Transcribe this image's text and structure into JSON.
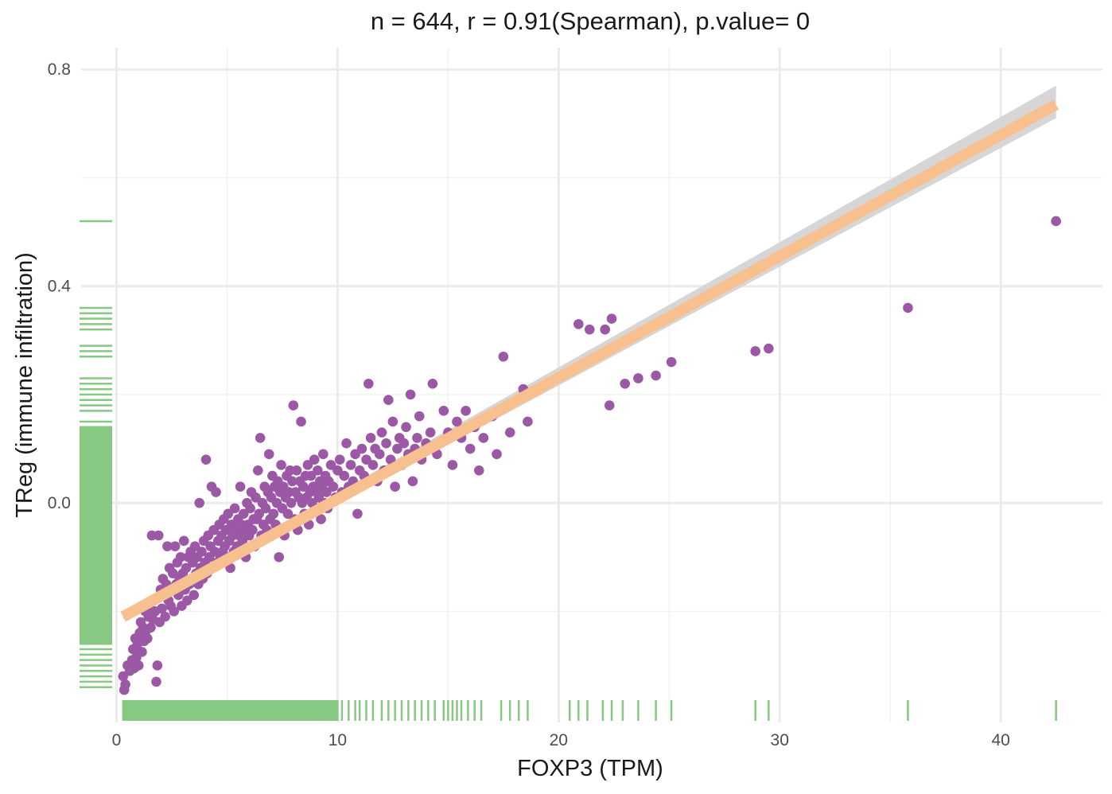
{
  "chart_data": {
    "type": "scatter",
    "title": "n = 644, r = 0.91(Spearman), p.value= 0",
    "xlabel": "FOXP3 (TPM)",
    "ylabel": "TReg (immune infiltration)",
    "xlim": [
      -1.6,
      44.6
    ],
    "ylim": [
      -0.405,
      0.84
    ],
    "x_ticks": [
      0,
      10,
      20,
      30,
      40
    ],
    "x_tick_labels": [
      "0",
      "10",
      "20",
      "30",
      "40"
    ],
    "y_ticks": [
      0.0,
      0.4,
      0.8
    ],
    "y_tick_labels": [
      "0.0",
      "0.4",
      "0.8"
    ],
    "grid": true,
    "colors": {
      "points": "#9b59a5",
      "fit_line": "#f9c08f",
      "confidence_band": "#d4d4d4",
      "rug": "#87c882"
    },
    "fit_line": {
      "x": [
        0.3,
        42.5
      ],
      "y": [
        -0.21,
        0.735
      ]
    },
    "confidence_band": {
      "x": [
        0.3,
        42.5
      ],
      "y_low": [
        -0.215,
        0.71
      ],
      "y_high": [
        -0.205,
        0.77
      ]
    },
    "points": [
      [
        0.3,
        -0.32
      ],
      [
        0.35,
        -0.345
      ],
      [
        0.4,
        -0.335
      ],
      [
        0.5,
        -0.3
      ],
      [
        0.6,
        -0.31
      ],
      [
        0.7,
        -0.29
      ],
      [
        0.75,
        -0.27
      ],
      [
        0.8,
        -0.305
      ],
      [
        0.85,
        -0.25
      ],
      [
        0.9,
        -0.285
      ],
      [
        0.95,
        -0.26
      ],
      [
        1.0,
        -0.3
      ],
      [
        1.05,
        -0.24
      ],
      [
        1.1,
        -0.22
      ],
      [
        1.15,
        -0.275
      ],
      [
        1.2,
        -0.23
      ],
      [
        1.25,
        -0.255
      ],
      [
        1.3,
        -0.2
      ],
      [
        1.35,
        -0.235
      ],
      [
        1.4,
        -0.25
      ],
      [
        1.45,
        -0.21
      ],
      [
        1.5,
        -0.19
      ],
      [
        1.55,
        -0.23
      ],
      [
        1.6,
        -0.06
      ],
      [
        1.65,
        -0.215
      ],
      [
        1.7,
        -0.18
      ],
      [
        1.75,
        -0.2
      ],
      [
        1.8,
        -0.33
      ],
      [
        1.85,
        -0.3
      ],
      [
        1.9,
        -0.06
      ],
      [
        1.95,
        -0.22
      ],
      [
        2.0,
        -0.16
      ],
      [
        2.05,
        -0.195
      ],
      [
        2.1,
        -0.14
      ],
      [
        2.15,
        -0.17
      ],
      [
        2.2,
        -0.21
      ],
      [
        2.25,
        -0.15
      ],
      [
        2.3,
        -0.08
      ],
      [
        2.35,
        -0.18
      ],
      [
        2.4,
        -0.12
      ],
      [
        2.45,
        -0.19
      ],
      [
        2.5,
        -0.16
      ],
      [
        2.55,
        -0.13
      ],
      [
        2.6,
        -0.2
      ],
      [
        2.65,
        -0.08
      ],
      [
        2.7,
        -0.15
      ],
      [
        2.75,
        -0.11
      ],
      [
        2.8,
        -0.17
      ],
      [
        2.85,
        -0.14
      ],
      [
        2.9,
        -0.1
      ],
      [
        2.95,
        -0.19
      ],
      [
        3.0,
        -0.13
      ],
      [
        3.05,
        -0.07
      ],
      [
        3.1,
        -0.16
      ],
      [
        3.15,
        -0.12
      ],
      [
        3.2,
        -0.18
      ],
      [
        3.25,
        -0.1
      ],
      [
        3.3,
        -0.15
      ],
      [
        3.35,
        -0.09
      ],
      [
        3.4,
        -0.14
      ],
      [
        3.45,
        -0.11
      ],
      [
        3.5,
        -0.17
      ],
      [
        3.55,
        -0.08
      ],
      [
        3.6,
        -0.13
      ],
      [
        3.65,
        -0.1
      ],
      [
        3.7,
        -0.15
      ],
      [
        3.75,
        0.0
      ],
      [
        3.8,
        -0.12
      ],
      [
        3.85,
        -0.09
      ],
      [
        3.9,
        -0.14
      ],
      [
        3.95,
        -0.07
      ],
      [
        4.0,
        -0.11
      ],
      [
        4.05,
        0.08
      ],
      [
        4.1,
        -0.13
      ],
      [
        4.15,
        -0.06
      ],
      [
        4.2,
        -0.1
      ],
      [
        4.25,
        -0.08
      ],
      [
        4.3,
        0.03
      ],
      [
        4.35,
        -0.12
      ],
      [
        4.4,
        -0.05
      ],
      [
        4.45,
        -0.09
      ],
      [
        4.5,
        0.02
      ],
      [
        4.55,
        -0.11
      ],
      [
        4.6,
        -0.07
      ],
      [
        4.65,
        -0.04
      ],
      [
        4.7,
        -0.1
      ],
      [
        4.75,
        -0.06
      ],
      [
        4.8,
        -0.09
      ],
      [
        4.85,
        -0.03
      ],
      [
        4.9,
        -0.08
      ],
      [
        4.95,
        -0.05
      ],
      [
        5.0,
        -0.1
      ],
      [
        5.05,
        -0.02
      ],
      [
        5.1,
        -0.07
      ],
      [
        5.15,
        -0.12
      ],
      [
        5.2,
        -0.04
      ],
      [
        5.25,
        -0.06
      ],
      [
        5.3,
        -0.09
      ],
      [
        5.35,
        -0.01
      ],
      [
        5.4,
        -0.05
      ],
      [
        5.45,
        -0.08
      ],
      [
        5.5,
        -0.03
      ],
      [
        5.55,
        -0.06
      ],
      [
        5.6,
        0.03
      ],
      [
        5.65,
        -0.04
      ],
      [
        5.7,
        -0.07
      ],
      [
        5.75,
        -0.02
      ],
      [
        5.8,
        -0.05
      ],
      [
        5.85,
        -0.1
      ],
      [
        5.9,
        0.0
      ],
      [
        5.95,
        -0.04
      ],
      [
        6.0,
        -0.06
      ],
      [
        6.05,
        -0.01
      ],
      [
        6.1,
        0.02
      ],
      [
        6.15,
        -0.05
      ],
      [
        6.2,
        -0.03
      ],
      [
        6.25,
        -0.08
      ],
      [
        6.3,
        0.01
      ],
      [
        6.35,
        -0.03
      ],
      [
        6.4,
        0.06
      ],
      [
        6.45,
        -0.02
      ],
      [
        6.5,
        0.12
      ],
      [
        6.55,
        -0.06
      ],
      [
        6.6,
        0.0
      ],
      [
        6.65,
        -0.04
      ],
      [
        6.7,
        0.03
      ],
      [
        6.75,
        -0.01
      ],
      [
        6.8,
        -0.05
      ],
      [
        6.85,
        0.02
      ],
      [
        6.9,
        0.09
      ],
      [
        6.95,
        -0.03
      ],
      [
        7.0,
        0.01
      ],
      [
        7.05,
        0.05
      ],
      [
        7.1,
        -0.02
      ],
      [
        7.15,
        0.03
      ],
      [
        7.2,
        -0.04
      ],
      [
        7.25,
        0.0
      ],
      [
        7.3,
        0.04
      ],
      [
        7.35,
        -0.1
      ],
      [
        7.4,
        0.02
      ],
      [
        7.45,
        0.07
      ],
      [
        7.5,
        -0.01
      ],
      [
        7.55,
        0.03
      ],
      [
        7.6,
        -0.06
      ],
      [
        7.65,
        0.01
      ],
      [
        7.7,
        0.05
      ],
      [
        7.75,
        -0.02
      ],
      [
        7.8,
        0.02
      ],
      [
        7.85,
        0.06
      ],
      [
        7.9,
        0.0
      ],
      [
        7.95,
        0.04
      ],
      [
        8.0,
        0.18
      ],
      [
        8.05,
        -0.03
      ],
      [
        8.1,
        0.02
      ],
      [
        8.15,
        0.06
      ],
      [
        8.2,
        -0.05
      ],
      [
        8.25,
        0.01
      ],
      [
        8.3,
        0.04
      ],
      [
        8.35,
        0.15
      ],
      [
        8.4,
        0.0
      ],
      [
        8.45,
        0.03
      ],
      [
        8.5,
        -0.02
      ],
      [
        8.55,
        0.05
      ],
      [
        8.6,
        0.01
      ],
      [
        8.65,
        0.07
      ],
      [
        8.7,
        -0.04
      ],
      [
        8.75,
        0.02
      ],
      [
        8.8,
        0.05
      ],
      [
        8.85,
        0.0
      ],
      [
        8.9,
        0.03
      ],
      [
        8.95,
        0.08
      ],
      [
        9.0,
        -0.01
      ],
      [
        9.05,
        0.02
      ],
      [
        9.1,
        0.06
      ],
      [
        9.15,
        0.01
      ],
      [
        9.2,
        0.04
      ],
      [
        9.25,
        -0.03
      ],
      [
        9.3,
        0.03
      ],
      [
        9.35,
        0.09
      ],
      [
        9.4,
        0.0
      ],
      [
        9.45,
        0.05
      ],
      [
        9.5,
        0.02
      ],
      [
        9.55,
        -0.01
      ],
      [
        9.6,
        0.04
      ],
      [
        9.7,
        0.07
      ],
      [
        9.8,
        0.03
      ],
      [
        9.9,
        0.01
      ],
      [
        10.0,
        0.06
      ],
      [
        10.1,
        0.08
      ],
      [
        10.2,
        0.02
      ],
      [
        10.3,
        0.05
      ],
      [
        10.4,
        0.11
      ],
      [
        10.5,
        0.03
      ],
      [
        10.6,
        0.07
      ],
      [
        10.7,
        0.04
      ],
      [
        10.8,
        0.09
      ],
      [
        10.9,
        -0.02
      ],
      [
        11.0,
        0.06
      ],
      [
        11.1,
        0.1
      ],
      [
        11.2,
        0.05
      ],
      [
        11.3,
        0.08
      ],
      [
        11.4,
        0.22
      ],
      [
        11.5,
        0.12
      ],
      [
        11.6,
        0.07
      ],
      [
        11.7,
        0.1
      ],
      [
        11.8,
        0.04
      ],
      [
        11.9,
        0.09
      ],
      [
        12.0,
        0.13
      ],
      [
        12.1,
        0.06
      ],
      [
        12.2,
        0.11
      ],
      [
        12.3,
        0.19
      ],
      [
        12.4,
        0.08
      ],
      [
        12.5,
        0.15
      ],
      [
        12.6,
        0.03
      ],
      [
        12.7,
        0.1
      ],
      [
        12.8,
        0.12
      ],
      [
        12.9,
        0.07
      ],
      [
        13.0,
        0.11
      ],
      [
        13.1,
        0.14
      ],
      [
        13.2,
        0.09
      ],
      [
        13.3,
        0.2
      ],
      [
        13.4,
        0.04
      ],
      [
        13.5,
        0.1
      ],
      [
        13.6,
        0.12
      ],
      [
        13.7,
        0.16
      ],
      [
        13.8,
        0.08
      ],
      [
        14.0,
        0.11
      ],
      [
        14.2,
        0.13
      ],
      [
        14.3,
        0.22
      ],
      [
        14.5,
        0.09
      ],
      [
        14.8,
        0.17
      ],
      [
        15.0,
        0.13
      ],
      [
        15.2,
        0.07
      ],
      [
        15.4,
        0.15
      ],
      [
        15.6,
        0.12
      ],
      [
        15.8,
        0.17
      ],
      [
        16.0,
        0.1
      ],
      [
        16.2,
        0.14
      ],
      [
        16.4,
        0.06
      ],
      [
        16.6,
        0.12
      ],
      [
        17.0,
        0.16
      ],
      [
        17.2,
        0.09
      ],
      [
        17.5,
        0.27
      ],
      [
        17.8,
        0.13
      ],
      [
        18.2,
        0.19
      ],
      [
        18.6,
        0.15
      ],
      [
        18.4,
        0.21
      ],
      [
        20.4,
        0.24
      ],
      [
        20.9,
        0.33
      ],
      [
        21.4,
        0.32
      ],
      [
        22.1,
        0.32
      ],
      [
        22.4,
        0.34
      ],
      [
        22.3,
        0.18
      ],
      [
        23.0,
        0.22
      ],
      [
        23.6,
        0.23
      ],
      [
        24.4,
        0.235
      ],
      [
        25.1,
        0.26
      ],
      [
        28.9,
        0.28
      ],
      [
        29.5,
        0.285
      ],
      [
        35.8,
        0.36
      ],
      [
        42.5,
        0.52
      ]
    ],
    "rug_x": [
      0.3,
      0.5,
      0.8,
      1.0,
      1.2,
      1.5,
      1.8,
      2.0,
      2.3,
      2.6,
      3.0,
      3.3,
      3.6,
      4.0,
      4.3,
      4.6,
      5.0,
      5.3,
      5.6,
      6.0,
      6.3,
      6.6,
      7.0,
      7.3,
      7.6,
      8.0,
      8.3,
      8.6,
      9.0,
      9.3,
      9.6,
      10.0,
      10.2,
      10.5,
      10.8,
      11.0,
      11.3,
      11.6,
      12.0,
      12.3,
      12.6,
      12.9,
      13.2,
      13.5,
      13.8,
      14.1,
      14.4,
      14.8,
      15.0,
      15.2,
      15.4,
      15.6,
      15.9,
      16.2,
      16.5,
      17.4,
      17.8,
      18.2,
      18.6,
      20.5,
      20.9,
      21.3,
      22.0,
      22.4,
      22.9,
      23.6,
      24.4,
      25.1,
      28.9,
      29.5,
      35.8,
      42.5
    ],
    "rug_y": [
      -0.34,
      -0.33,
      -0.32,
      -0.31,
      -0.3,
      -0.29,
      -0.28,
      -0.27,
      -0.26,
      -0.25,
      -0.24,
      -0.23,
      -0.22,
      -0.21,
      -0.2,
      -0.19,
      -0.18,
      -0.17,
      -0.16,
      -0.15,
      -0.14,
      -0.13,
      -0.12,
      -0.11,
      -0.1,
      -0.09,
      -0.08,
      -0.07,
      -0.06,
      -0.05,
      -0.04,
      -0.03,
      -0.02,
      -0.01,
      0.0,
      0.01,
      0.02,
      0.03,
      0.04,
      0.05,
      0.06,
      0.07,
      0.08,
      0.09,
      0.1,
      0.11,
      0.12,
      0.13,
      0.14,
      0.15,
      0.17,
      0.18,
      0.19,
      0.2,
      0.21,
      0.22,
      0.23,
      0.27,
      0.28,
      0.29,
      0.32,
      0.33,
      0.34,
      0.35,
      0.36,
      0.52
    ]
  }
}
